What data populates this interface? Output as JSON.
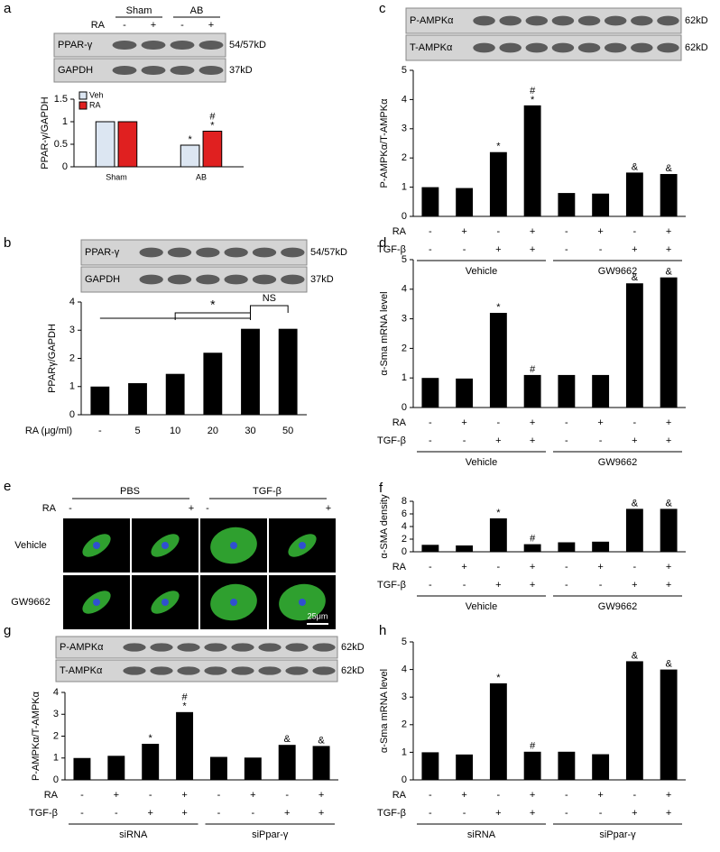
{
  "chart_data": [
    {
      "panel": "a",
      "type": "bar",
      "ylabel": "PPAR-γ/GAPDH",
      "blot": {
        "groups": [
          "Sham",
          "AB"
        ],
        "rows": [
          {
            "label": "RA",
            "signs": [
              "-",
              "+",
              "-",
              "+"
            ]
          }
        ],
        "bands": [
          {
            "label": "PPAR-γ",
            "size": "54/57kD"
          },
          {
            "label": "GAPDH",
            "size": "37kD"
          }
        ]
      },
      "categories": [
        "Sham",
        "AB"
      ],
      "series": [
        {
          "name": "Veh",
          "color": "#dce6f2",
          "values": [
            1,
            0.48
          ],
          "markers": [
            null,
            [
              "*"
            ]
          ]
        },
        {
          "name": "RA",
          "color": "#e02020",
          "values": [
            1,
            0.79
          ],
          "markers": [
            null,
            [
              "#",
              "*"
            ]
          ]
        }
      ],
      "ylim": [
        0,
        1.5
      ],
      "yticks": [
        0,
        0.5,
        1,
        1.5
      ]
    },
    {
      "panel": "b",
      "type": "bar",
      "ylabel": "PPARγ/GAPDH",
      "xlabel": "RA (μg/ml)",
      "color": "#000000",
      "blot": {
        "bands": [
          {
            "label": "PPAR-γ",
            "size": "54/57kD"
          },
          {
            "label": "GAPDH",
            "size": "37kD"
          }
        ]
      },
      "categories": [
        "-",
        "5",
        "10",
        "20",
        "30",
        "50"
      ],
      "values": [
        1,
        1.12,
        1.45,
        2.2,
        3.05,
        3.05
      ],
      "annotations": [
        "*",
        "NS"
      ],
      "ylim": [
        0,
        4
      ],
      "yticks": [
        0,
        1,
        2,
        3,
        4
      ]
    },
    {
      "panel": "c",
      "type": "bar",
      "ylabel": "P-AMPKα/T-AMPKα",
      "color": "#000000",
      "blot": {
        "bands": [
          {
            "label": "P-AMPKα",
            "size": "62kD"
          },
          {
            "label": "T-AMPKα",
            "size": "62kD"
          }
        ]
      },
      "values": [
        1,
        0.97,
        2.2,
        3.8,
        0.8,
        0.78,
        1.5,
        1.45
      ],
      "markers": [
        null,
        null,
        [
          "*"
        ],
        [
          "#",
          "*"
        ],
        null,
        null,
        [
          "&"
        ],
        [
          "&"
        ]
      ],
      "rows": [
        {
          "label": "RA",
          "signs": [
            "-",
            "+",
            "-",
            "+",
            "-",
            "+",
            "-",
            "+"
          ]
        },
        {
          "label": "TGF-β",
          "signs": [
            "-",
            "-",
            "+",
            "+",
            "-",
            "-",
            "+",
            "+"
          ]
        }
      ],
      "groups": [
        "Vehicle",
        "GW9662"
      ],
      "ylim": [
        0,
        5
      ],
      "yticks": [
        0,
        1,
        2,
        3,
        4,
        5
      ]
    },
    {
      "panel": "d",
      "type": "bar",
      "ylabel": "α-Sma  mRNA level",
      "color": "#000000",
      "values": [
        1,
        0.98,
        3.2,
        1.1,
        1.1,
        1.1,
        4.2,
        4.4
      ],
      "markers": [
        null,
        null,
        [
          "*"
        ],
        [
          "#"
        ],
        null,
        null,
        [
          "&"
        ],
        [
          "&"
        ]
      ],
      "rows": [
        {
          "label": "RA",
          "signs": [
            "-",
            "+",
            "-",
            "+",
            "-",
            "+",
            "-",
            "+"
          ]
        },
        {
          "label": "TGF-β",
          "signs": [
            "-",
            "-",
            "+",
            "+",
            "-",
            "-",
            "+",
            "+"
          ]
        }
      ],
      "groups": [
        "Vehicle",
        "GW9662"
      ],
      "ylim": [
        0,
        5
      ],
      "yticks": [
        0,
        1,
        2,
        3,
        4,
        5
      ]
    },
    {
      "panel": "f",
      "type": "bar",
      "ylabel": "α-SMA density",
      "color": "#000000",
      "values": [
        1.1,
        1.0,
        5.3,
        1.2,
        1.5,
        1.6,
        6.8,
        6.8
      ],
      "markers": [
        null,
        null,
        [
          "*"
        ],
        [
          "#"
        ],
        null,
        null,
        [
          "&"
        ],
        [
          "&"
        ]
      ],
      "rows": [
        {
          "label": "RA",
          "signs": [
            "-",
            "+",
            "-",
            "+",
            "-",
            "+",
            "-",
            "+"
          ]
        },
        {
          "label": "TGF-β",
          "signs": [
            "-",
            "-",
            "+",
            "+",
            "-",
            "-",
            "+",
            "+"
          ]
        }
      ],
      "groups": [
        "Vehicle",
        "GW9662"
      ],
      "ylim": [
        0,
        8
      ],
      "yticks": [
        0,
        2,
        4,
        6,
        8
      ]
    },
    {
      "panel": "g",
      "type": "bar",
      "ylabel": "P-AMPKα/T-AMPKα",
      "color": "#000000",
      "blot": {
        "bands": [
          {
            "label": "P-AMPKα",
            "size": "62kD"
          },
          {
            "label": "T-AMPKα",
            "size": "62kD"
          }
        ]
      },
      "values": [
        1,
        1.1,
        1.65,
        3.1,
        1.05,
        1.02,
        1.6,
        1.55
      ],
      "markers": [
        null,
        null,
        [
          "*"
        ],
        [
          "#",
          "*"
        ],
        null,
        null,
        [
          "&"
        ],
        [
          "&"
        ]
      ],
      "rows": [
        {
          "label": "RA",
          "signs": [
            "-",
            "+",
            "-",
            "+",
            "-",
            "+",
            "-",
            "+"
          ]
        },
        {
          "label": "TGF-β",
          "signs": [
            "-",
            "-",
            "+",
            "+",
            "-",
            "-",
            "+",
            "+"
          ]
        }
      ],
      "groups": [
        "siRNA",
        "siPpar-γ"
      ],
      "ylim": [
        0,
        4
      ],
      "yticks": [
        0,
        1,
        2,
        3,
        4
      ]
    },
    {
      "panel": "h",
      "type": "bar",
      "ylabel": "α-Sma  mRNA level",
      "color": "#000000",
      "values": [
        1,
        0.92,
        3.5,
        1.02,
        1.02,
        0.93,
        4.3,
        4.0
      ],
      "markers": [
        null,
        null,
        [
          "*"
        ],
        [
          "#"
        ],
        null,
        null,
        [
          "&"
        ],
        [
          "&"
        ]
      ],
      "rows": [
        {
          "label": "RA",
          "signs": [
            "-",
            "+",
            "-",
            "+",
            "-",
            "+",
            "-",
            "+"
          ]
        },
        {
          "label": "TGF-β",
          "signs": [
            "-",
            "-",
            "+",
            "+",
            "-",
            "-",
            "+",
            "+"
          ]
        }
      ],
      "groups": [
        "siRNA",
        "siPpar-γ"
      ],
      "ylim": [
        0,
        5
      ],
      "yticks": [
        0,
        1,
        2,
        3,
        4,
        5
      ]
    }
  ],
  "micrograph": {
    "panel": "e",
    "groups": [
      "PBS",
      "TGF-β"
    ],
    "row_label": "RA",
    "signs": [
      "-",
      "+",
      "-",
      "+"
    ],
    "rows": [
      "Vehicle",
      "GW9662"
    ],
    "scale": "25μm"
  }
}
